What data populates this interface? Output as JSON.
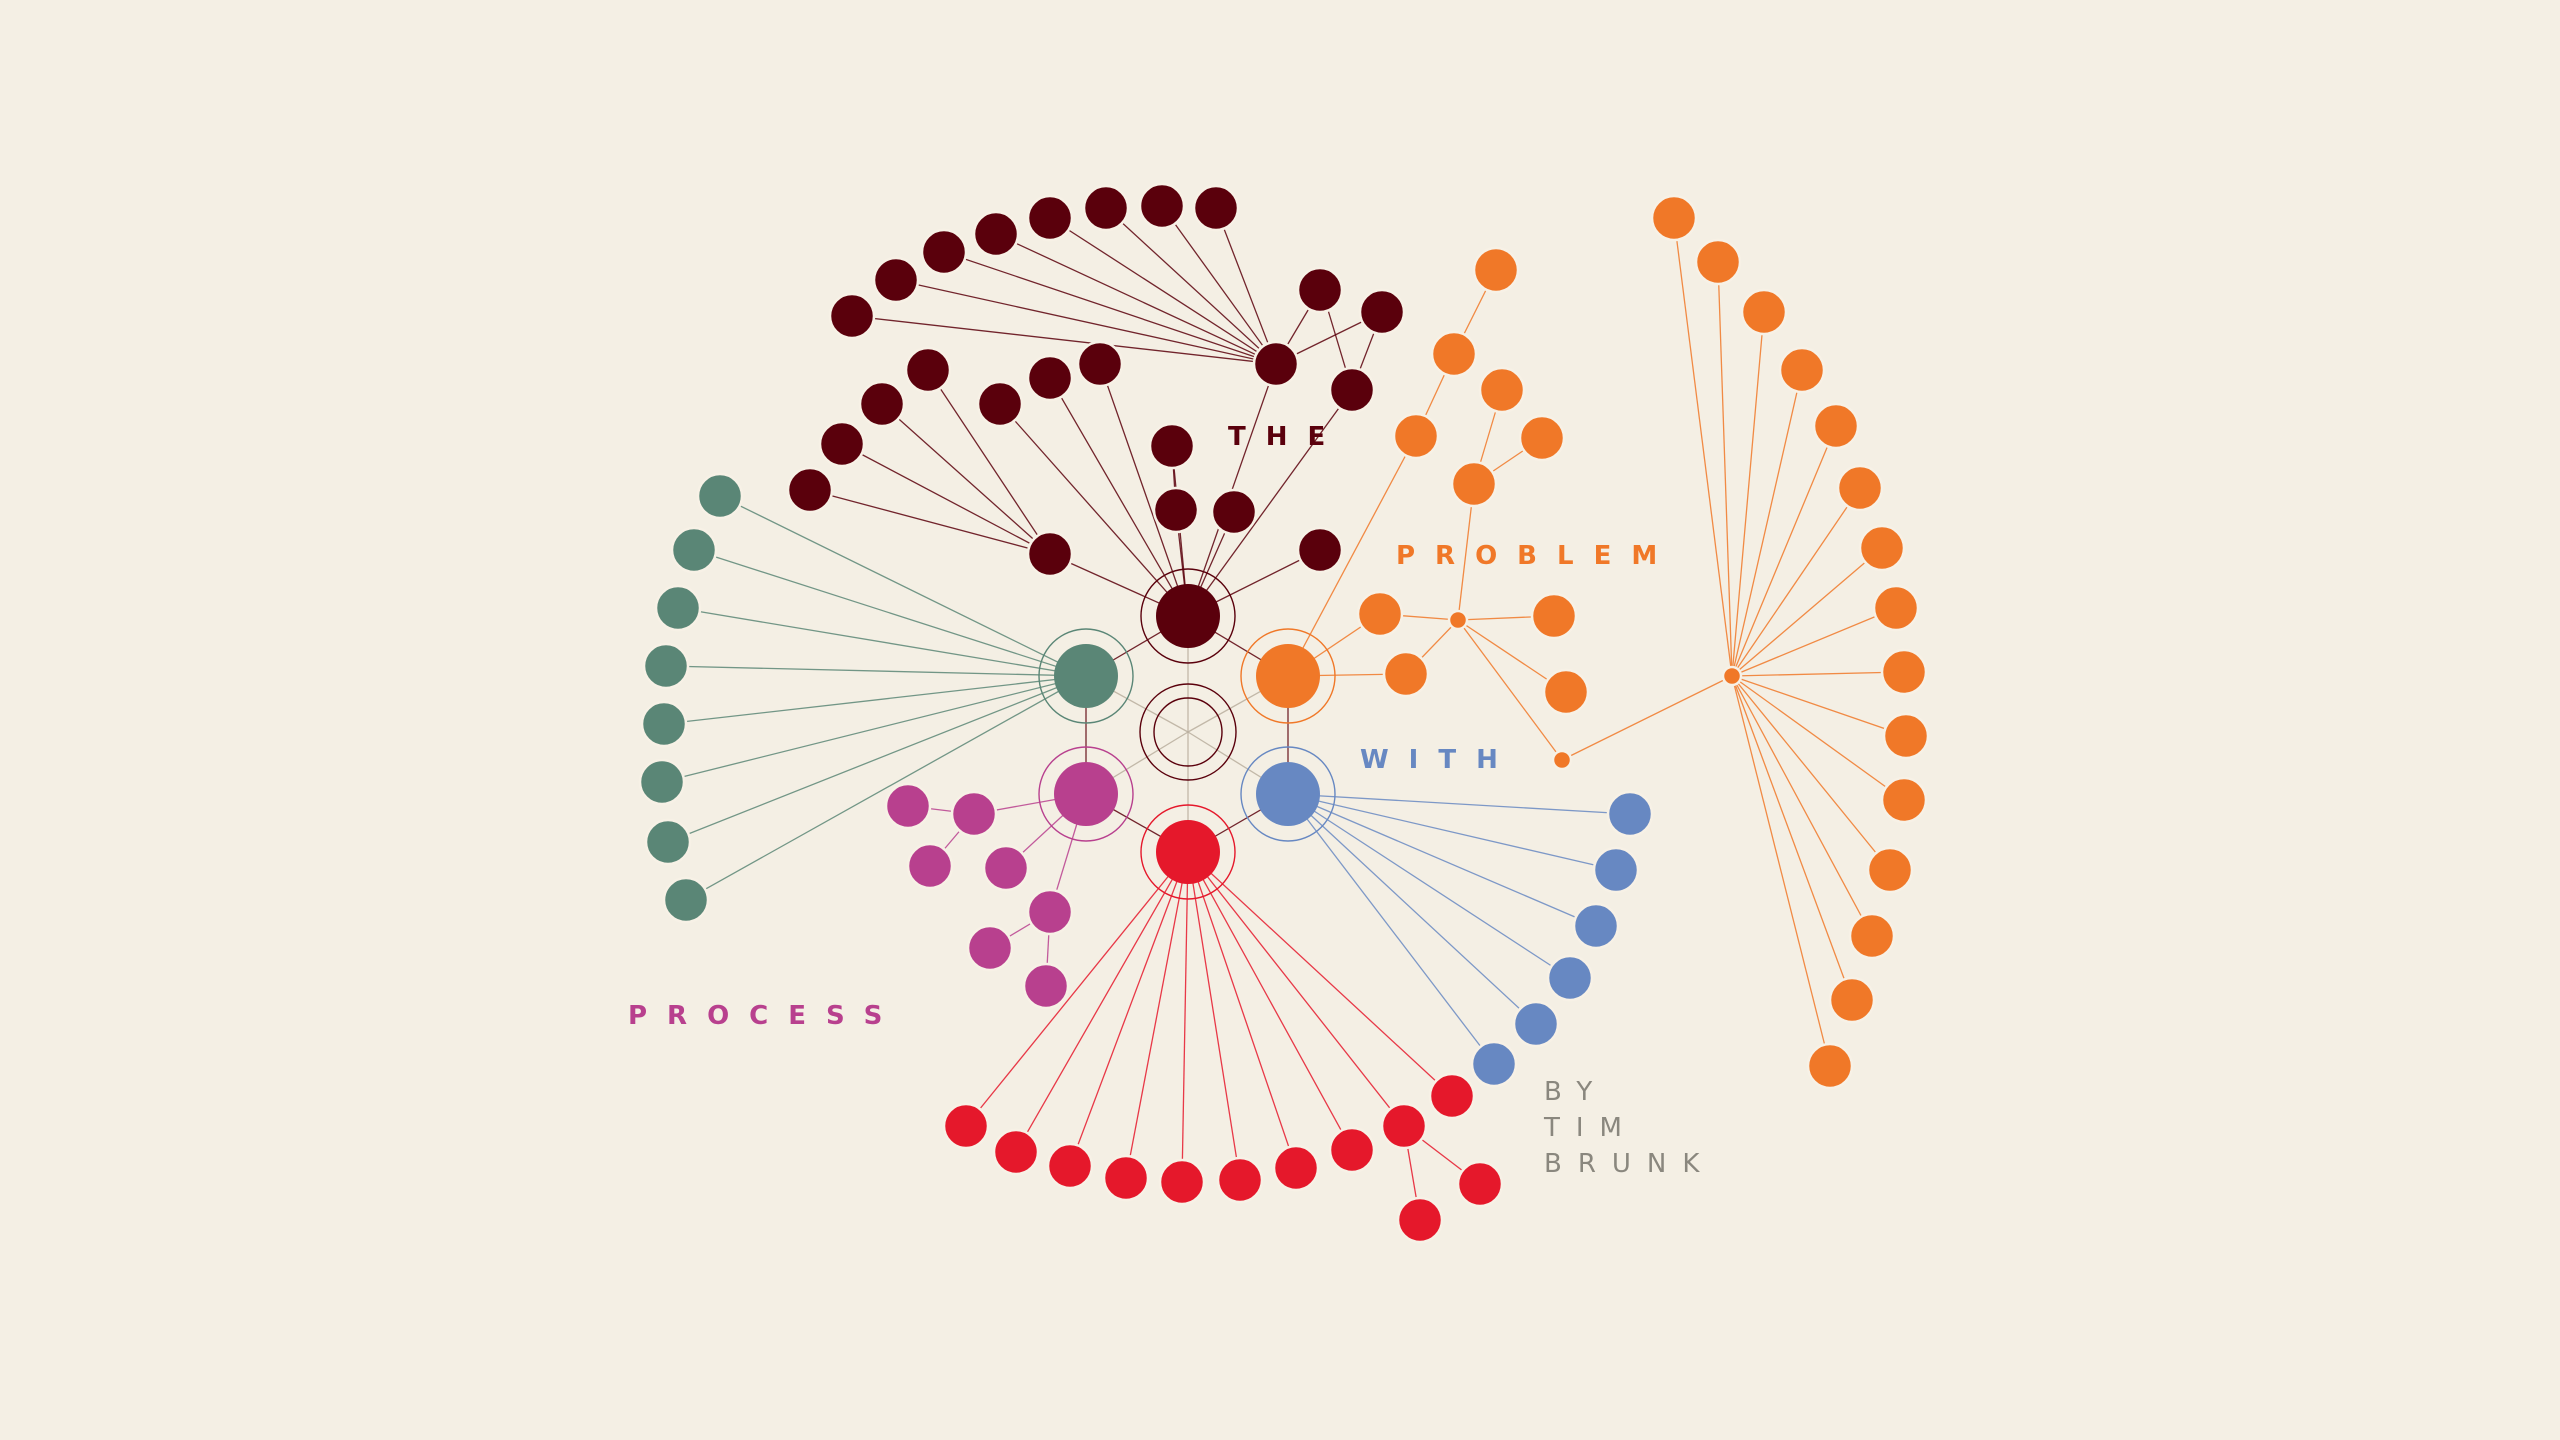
{
  "title_words": {
    "the": "THE",
    "problem": "PROBLEM",
    "with": "WITH",
    "process": "PROCESS"
  },
  "byline": {
    "by": "BY",
    "first_name": "TIM",
    "last_name": "BRUNK"
  },
  "colors": {
    "background": "#f4efe4",
    "maroon": "#5a000c",
    "orange": "#f07828",
    "green": "#5a8676",
    "magenta": "#b8408e",
    "blue": "#6788c2",
    "red": "#e5182b",
    "gray": "#8a877e"
  }
}
